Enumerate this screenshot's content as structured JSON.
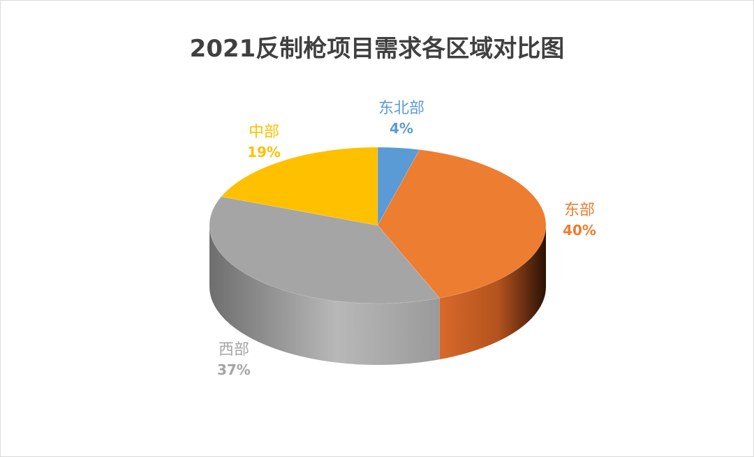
{
  "chart_data": {
    "type": "pie",
    "title": "2021反制枪项目需求各区域对比图",
    "categories": [
      "东北部",
      "东部",
      "西部",
      "中部"
    ],
    "values": [
      4,
      40,
      37,
      19
    ],
    "percent_labels": [
      "4%",
      "40%",
      "37%",
      "19%"
    ],
    "colors": [
      "#5b9bd5",
      "#ed7d31",
      "#a5a5a5",
      "#ffc000"
    ],
    "legend": "none",
    "style": "3d"
  }
}
